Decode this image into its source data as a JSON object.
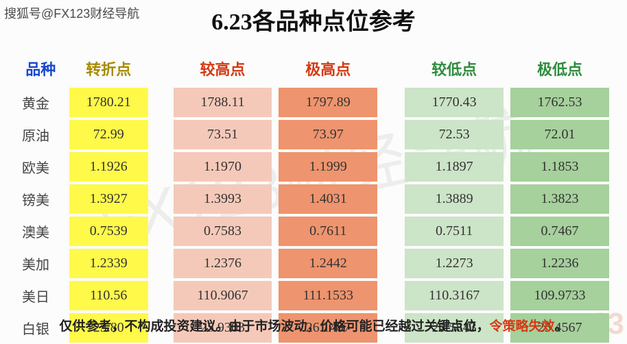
{
  "source_text": "搜狐号@FX123财经导航",
  "title": "6.23各品种点位参考",
  "watermark_main": "FX123财经导航",
  "watermark_corner": "123",
  "headers": {
    "name": {
      "label": "品种",
      "color": "#1747d1"
    },
    "pivot": {
      "label": "转折点",
      "color": "#a88a00"
    },
    "high1": {
      "label": "较高点",
      "color": "#d43913"
    },
    "high2": {
      "label": "极高点",
      "color": "#d43913"
    },
    "low1": {
      "label": "较低点",
      "color": "#2e8b3d"
    },
    "low2": {
      "label": "极低点",
      "color": "#2e8b3d"
    }
  },
  "cell_bg": {
    "pivot": "#fff94a",
    "high1": "#f5c9b9",
    "high2": "#ee946e",
    "low1": "#cce4c7",
    "low2": "#a6d09c"
  },
  "text_color_cells": "#333333",
  "rows": [
    {
      "name": "黄金",
      "pivot": "1780.21",
      "high1": "1788.11",
      "high2": "1797.89",
      "low1": "1770.43",
      "low2": "1762.53"
    },
    {
      "name": "原油",
      "pivot": "72.99",
      "high1": "73.51",
      "high2": "73.97",
      "low1": "72.53",
      "low2": "72.01"
    },
    {
      "name": "欧美",
      "pivot": "1.1926",
      "high1": "1.1970",
      "high2": "1.1999",
      "low1": "1.1897",
      "low2": "1.1853"
    },
    {
      "name": "镑美",
      "pivot": "1.3927",
      "high1": "1.3993",
      "high2": "1.4031",
      "low1": "1.3889",
      "low2": "1.3823"
    },
    {
      "name": "澳美",
      "pivot": "0.7539",
      "high1": "0.7583",
      "high2": "0.7611",
      "low1": "0.7511",
      "low2": "0.7467"
    },
    {
      "name": "美加",
      "pivot": "1.2339",
      "high1": "1.2376",
      "high2": "1.2442",
      "low1": "1.2273",
      "low2": "1.2236"
    },
    {
      "name": "美日",
      "pivot": "110.56",
      "high1": "110.9067",
      "high2": "111.1533",
      "low1": "110.3167",
      "low2": "109.9733"
    },
    {
      "name": "白银",
      "pivot": "25.80",
      "high1": "25.9303",
      "high2": "26.1487",
      "low1": "25.5843",
      "low2": "25.4567"
    }
  ],
  "footer_pre": "仅供参考，不构成投资建议。由于市场波动，价格可能已经越过关键点位，",
  "footer_warn": "令策略失效",
  "footer_tail": "。"
}
